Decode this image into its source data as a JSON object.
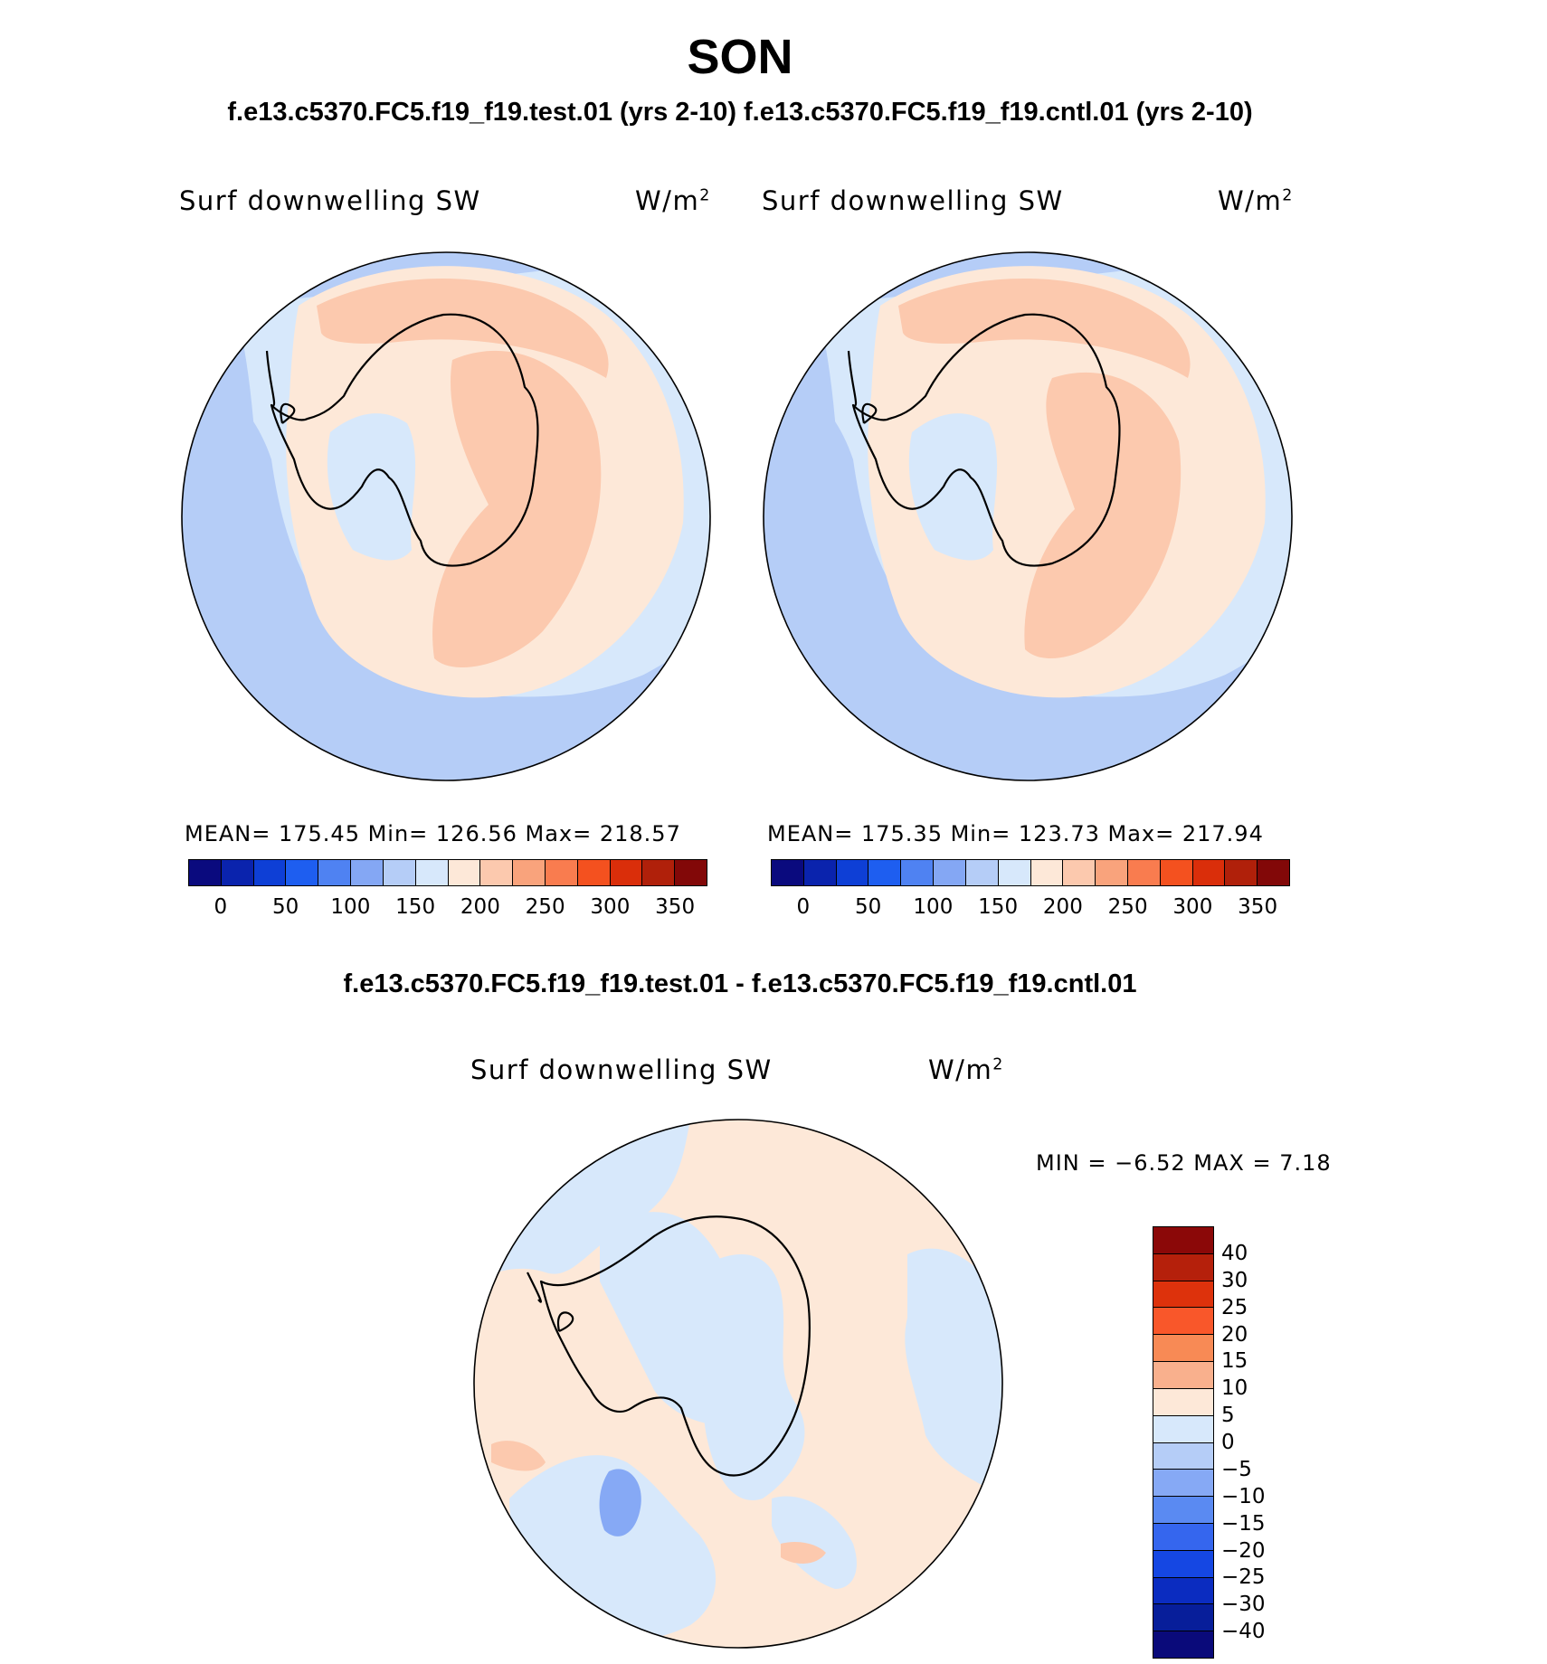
{
  "title": "SON",
  "subtitle": "f.e13.c5370.FC5.f19_f19.test.01 (yrs 2-10) f.e13.c5370.FC5.f19_f19.cntl.01 (yrs 2-10)",
  "diff_title": "f.e13.c5370.FC5.f19_f19.test.01 - f.e13.c5370.FC5.f19_f19.cntl.01",
  "panels": [
    {
      "variable": "Surf downwelling SW",
      "units_base": "W/m",
      "units_exp": "2",
      "stats": "MEAN= 175.45   Min= 126.56   Max= 218.57"
    },
    {
      "variable": "Surf downwelling SW",
      "units_base": "W/m",
      "units_exp": "2",
      "stats": "MEAN= 175.35   Min= 123.73   Max= 217.94"
    }
  ],
  "diff_panel": {
    "variable": "Surf downwelling SW",
    "units_base": "W/m",
    "units_exp": "2",
    "stats": "MIN =   −6.52 MAX =    7.18"
  },
  "colorbar_abs": {
    "colors": [
      "#0a0a7e",
      "#0a23ad",
      "#0e3fd6",
      "#1e5ef0",
      "#4f82f2",
      "#84a7f4",
      "#b5cdf7",
      "#d7e8fb",
      "#fde8d8",
      "#fcc9ae",
      "#f9a37c",
      "#f97c4f",
      "#f4511f",
      "#da2e0a",
      "#b0200a",
      "#820808"
    ],
    "ticks": [
      "0",
      "50",
      "100",
      "150",
      "200",
      "250",
      "300",
      "350"
    ]
  },
  "colorbar_diff": {
    "colors_top_to_bottom": [
      "#8b0808",
      "#b5200b",
      "#dd320c",
      "#f9572a",
      "#f88a55",
      "#f9b08d",
      "#fde8d8",
      "#d7e8fb",
      "#b5cdf7",
      "#86a9f5",
      "#5a8af2",
      "#3566ee",
      "#1547e3",
      "#0b2cc0",
      "#071e9a",
      "#0a0a7a"
    ],
    "ticks": [
      "40",
      "30",
      "25",
      "20",
      "15",
      "10",
      "5",
      "0",
      "−5",
      "−10",
      "−15",
      "−20",
      "−25",
      "−30",
      "−40"
    ]
  },
  "map_colors": {
    "outer_blue": "#b5cdf7",
    "light_blue": "#d7e8fb",
    "light_peach": "#fde8d8",
    "peach": "#fcc9ae",
    "mid_blue": "#86a9f5",
    "coast": "#000000"
  }
}
